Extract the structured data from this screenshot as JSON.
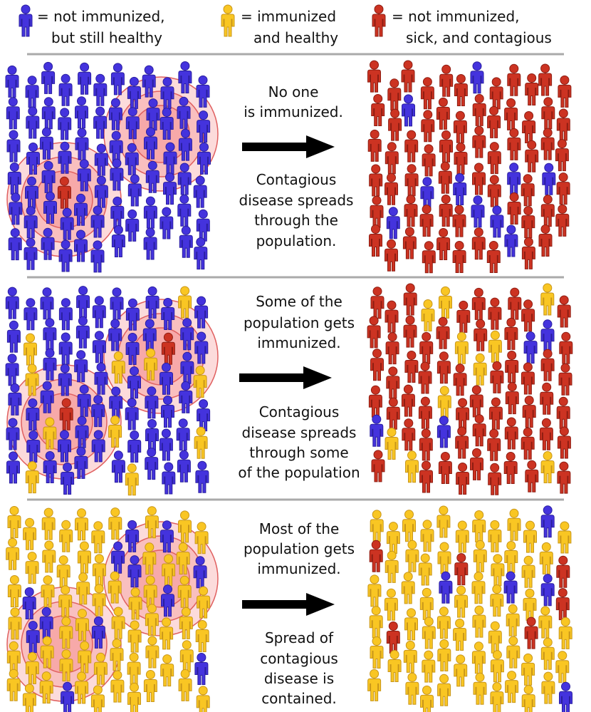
{
  "legend": [
    {
      "lines": [
        "= not immunized,",
        "but still healthy"
      ]
    },
    {
      "lines": [
        "= immunized",
        "and healthy"
      ]
    },
    {
      "lines": [
        "= not immunized,",
        "sick, and contagious"
      ]
    }
  ],
  "panels": [
    {
      "top": [
        "No one",
        "is immunized."
      ],
      "bottom": [
        "Contagious",
        "disease spreads",
        "through the",
        "population."
      ]
    },
    {
      "top": [
        "Some of the",
        "population gets",
        "immunized."
      ],
      "bottom": [
        "Contagious",
        "disease spreads",
        "through some",
        "of the population"
      ]
    },
    {
      "top": [
        "Most of the",
        "population gets",
        "immunized."
      ],
      "bottom": [
        "Spread of",
        "contagious",
        "disease is",
        "contained."
      ]
    }
  ]
}
